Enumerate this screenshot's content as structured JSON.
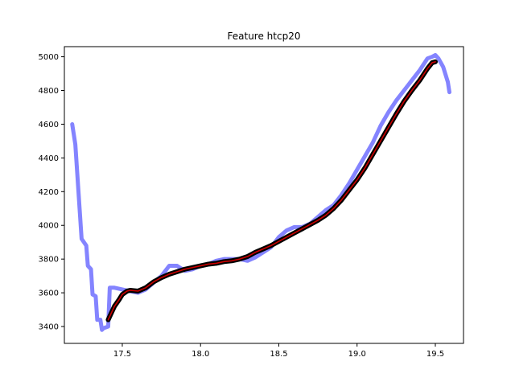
{
  "chart_data": {
    "type": "line",
    "title": "Feature htcp20",
    "xlabel": "",
    "ylabel": "",
    "xlim": [
      17.13,
      19.68
    ],
    "ylim": [
      3300,
      5060
    ],
    "xticks": [
      17.5,
      18.0,
      18.5,
      19.0,
      19.5
    ],
    "yticks": [
      3400,
      3600,
      3800,
      4000,
      4200,
      4400,
      4600,
      4800,
      5000
    ],
    "grid": false,
    "legend": "none",
    "series": [
      {
        "color": "#7777ff",
        "x": [
          17.18,
          17.2,
          17.24,
          17.27,
          17.28,
          17.3,
          17.31,
          17.33,
          17.34,
          17.36,
          17.37,
          17.38,
          17.41,
          17.42,
          17.43,
          17.45,
          17.5,
          17.55,
          17.6,
          17.65,
          17.7,
          17.75,
          17.8,
          17.85,
          17.9,
          17.95,
          18.0,
          18.05,
          18.1,
          18.15,
          18.2,
          18.25,
          18.3,
          18.35,
          18.4,
          18.45,
          18.5,
          18.55,
          18.6,
          18.65,
          18.7,
          18.75,
          18.8,
          18.85,
          18.9,
          18.95,
          19.0,
          19.05,
          19.1,
          19.15,
          19.2,
          19.25,
          19.3,
          19.35,
          19.4,
          19.45,
          19.48,
          19.5,
          19.52,
          19.55,
          19.58,
          19.59
        ],
        "y": [
          4600,
          4480,
          3920,
          3880,
          3760,
          3740,
          3590,
          3580,
          3440,
          3440,
          3380,
          3390,
          3400,
          3630,
          3630,
          3630,
          3620,
          3610,
          3600,
          3620,
          3660,
          3700,
          3760,
          3760,
          3730,
          3740,
          3760,
          3770,
          3790,
          3800,
          3800,
          3800,
          3790,
          3810,
          3840,
          3870,
          3930,
          3970,
          3990,
          3990,
          4010,
          4050,
          4090,
          4120,
          4180,
          4250,
          4330,
          4410,
          4490,
          4590,
          4670,
          4740,
          4800,
          4860,
          4920,
          4990,
          5000,
          5010,
          4990,
          4940,
          4850,
          4790
        ]
      },
      {
        "color": "#000000",
        "x": [
          17.41,
          17.43,
          17.45,
          17.48,
          17.5,
          17.53,
          17.55,
          17.6,
          17.65,
          17.7,
          17.75,
          17.8,
          17.85,
          17.9,
          17.95,
          18.0,
          18.05,
          18.1,
          18.15,
          18.2,
          18.25,
          18.3,
          18.35,
          18.4,
          18.45,
          18.5,
          18.55,
          18.6,
          18.65,
          18.7,
          18.75,
          18.8,
          18.85,
          18.9,
          18.95,
          19.0,
          19.05,
          19.1,
          19.15,
          19.2,
          19.25,
          19.3,
          19.35,
          19.4,
          19.45,
          19.48,
          19.5
        ],
        "y": [
          3440,
          3480,
          3520,
          3560,
          3590,
          3610,
          3615,
          3610,
          3630,
          3665,
          3690,
          3710,
          3725,
          3740,
          3750,
          3760,
          3770,
          3775,
          3785,
          3790,
          3800,
          3815,
          3840,
          3860,
          3880,
          3905,
          3930,
          3955,
          3980,
          4005,
          4030,
          4060,
          4100,
          4150,
          4210,
          4270,
          4340,
          4420,
          4500,
          4580,
          4660,
          4735,
          4800,
          4860,
          4930,
          4965,
          4970
        ]
      },
      {
        "color": "#cc0000",
        "x": [
          17.41,
          17.43,
          17.45,
          17.48,
          17.5,
          17.53,
          17.55,
          17.6,
          17.65,
          17.7,
          17.75,
          17.8,
          17.85,
          17.9,
          17.95,
          18.0,
          18.05,
          18.1,
          18.15,
          18.2,
          18.25,
          18.3,
          18.35,
          18.4,
          18.45,
          18.5,
          18.55,
          18.6,
          18.65,
          18.7,
          18.75,
          18.8,
          18.85,
          18.9,
          18.95,
          19.0,
          19.05,
          19.1,
          19.15,
          19.2,
          19.25,
          19.3,
          19.35,
          19.4,
          19.45,
          19.48,
          19.5
        ],
        "y": [
          3440,
          3480,
          3520,
          3560,
          3590,
          3610,
          3615,
          3610,
          3630,
          3665,
          3690,
          3710,
          3725,
          3740,
          3750,
          3760,
          3770,
          3775,
          3785,
          3790,
          3800,
          3815,
          3840,
          3860,
          3880,
          3905,
          3930,
          3955,
          3980,
          4005,
          4030,
          4060,
          4100,
          4150,
          4210,
          4270,
          4340,
          4420,
          4500,
          4580,
          4660,
          4735,
          4800,
          4860,
          4930,
          4965,
          4970
        ]
      }
    ]
  }
}
